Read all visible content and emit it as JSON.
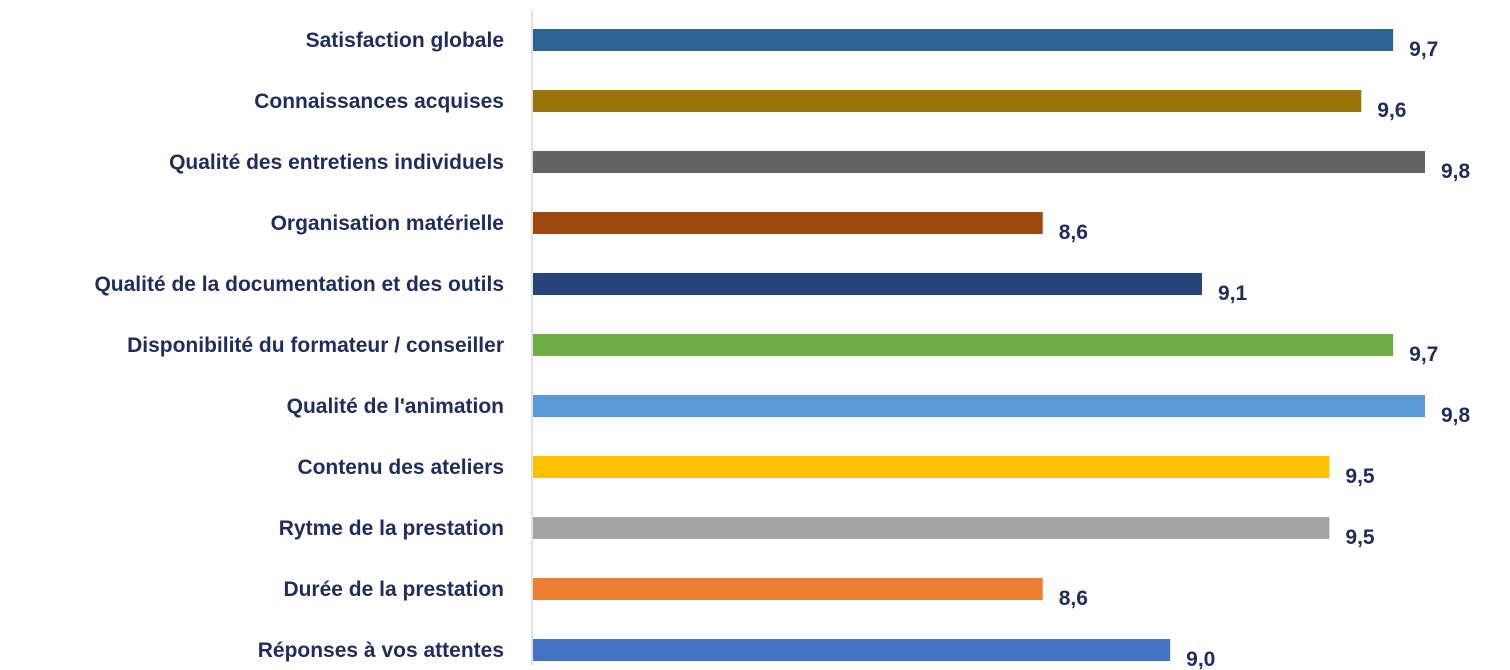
{
  "chart_data": {
    "type": "bar",
    "orientation": "horizontal",
    "categories": [
      "Satisfaction globale",
      "Connaissances acquises",
      "Qualité des entretiens individuels",
      "Organisation matérielle",
      "Qualité de la documentation et des outils",
      "Disponibilité du formateur / conseiller",
      "Qualité de l'animation",
      "Contenu des ateliers",
      "Rytme de la prestation",
      "Durée de la prestation",
      "Réponses à vos attentes"
    ],
    "values": [
      9.7,
      9.6,
      9.8,
      8.6,
      9.1,
      9.7,
      9.8,
      9.5,
      9.5,
      8.6,
      9.0
    ],
    "value_labels": [
      "9,7",
      "9,6",
      "9,8",
      "8,6",
      "9,1",
      "9,7",
      "9,8",
      "9,5",
      "9,5",
      "8,6",
      "9,0"
    ],
    "colors": [
      "#2e6494",
      "#9a7506",
      "#636363",
      "#9e480e",
      "#264478",
      "#70ad47",
      "#5b9bd5",
      "#ffc000",
      "#a5a5a5",
      "#ed7d31",
      "#4472c4"
    ],
    "xlim": [
      7.0,
      9.8
    ],
    "grid": false,
    "legend": "none"
  }
}
